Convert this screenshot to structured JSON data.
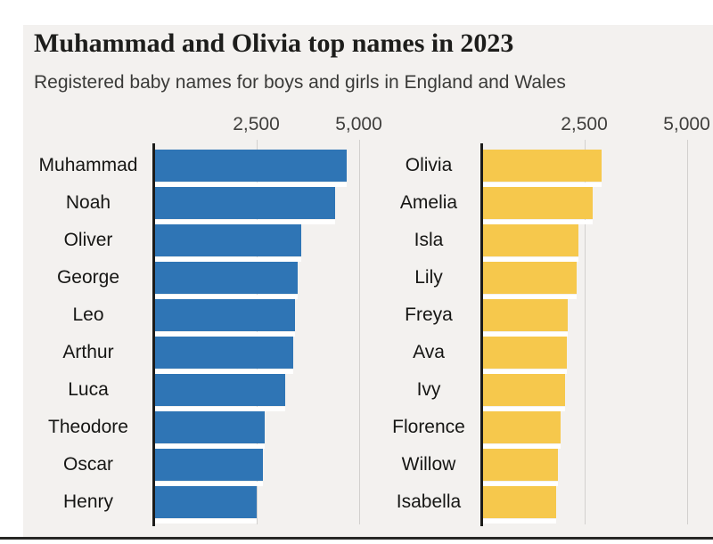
{
  "chart_data": {
    "type": "bar",
    "orientation": "horizontal",
    "title": "Muhammad and Olivia top names in 2023",
    "subtitle": "Registered baby names for boys and girls in England and Wales",
    "xlim": [
      0,
      5000
    ],
    "grid": true,
    "legend_position": "none",
    "axis_ticks": [
      {
        "label": "2,500",
        "value": 2500
      },
      {
        "label": "5,000",
        "value": 5000
      }
    ],
    "series": [
      {
        "name": "Boys",
        "color": "#2f75b5",
        "categories": [
          "Muhammad",
          "Noah",
          "Oliver",
          "George",
          "Leo",
          "Arthur",
          "Luca",
          "Theodore",
          "Oscar",
          "Henry"
        ],
        "values": [
          4670,
          4390,
          3560,
          3480,
          3410,
          3370,
          3170,
          2670,
          2630,
          2480
        ]
      },
      {
        "name": "Girls",
        "color": "#f6c84c",
        "categories": [
          "Olivia",
          "Amelia",
          "Isla",
          "Lily",
          "Freya",
          "Ava",
          "Ivy",
          "Florence",
          "Willow",
          "Isabella"
        ],
        "values": [
          2890,
          2670,
          2330,
          2280,
          2060,
          2040,
          2000,
          1890,
          1830,
          1780
        ]
      }
    ]
  },
  "colors": {
    "page_bg": "#ffffff",
    "panel_bg": "#f3f1ef",
    "axis_line": "#1c1c1a",
    "gridline": "#d2d0ce",
    "bar_separator": "#ffffff",
    "title_text": "#1d1d1b",
    "subtitle_text": "#3a3a38",
    "tick_text": "#403f3d",
    "label_text": "#161614",
    "bottom_rule": "#272725",
    "boys_bar": "#2f75b5",
    "girls_bar": "#f6c84c"
  }
}
